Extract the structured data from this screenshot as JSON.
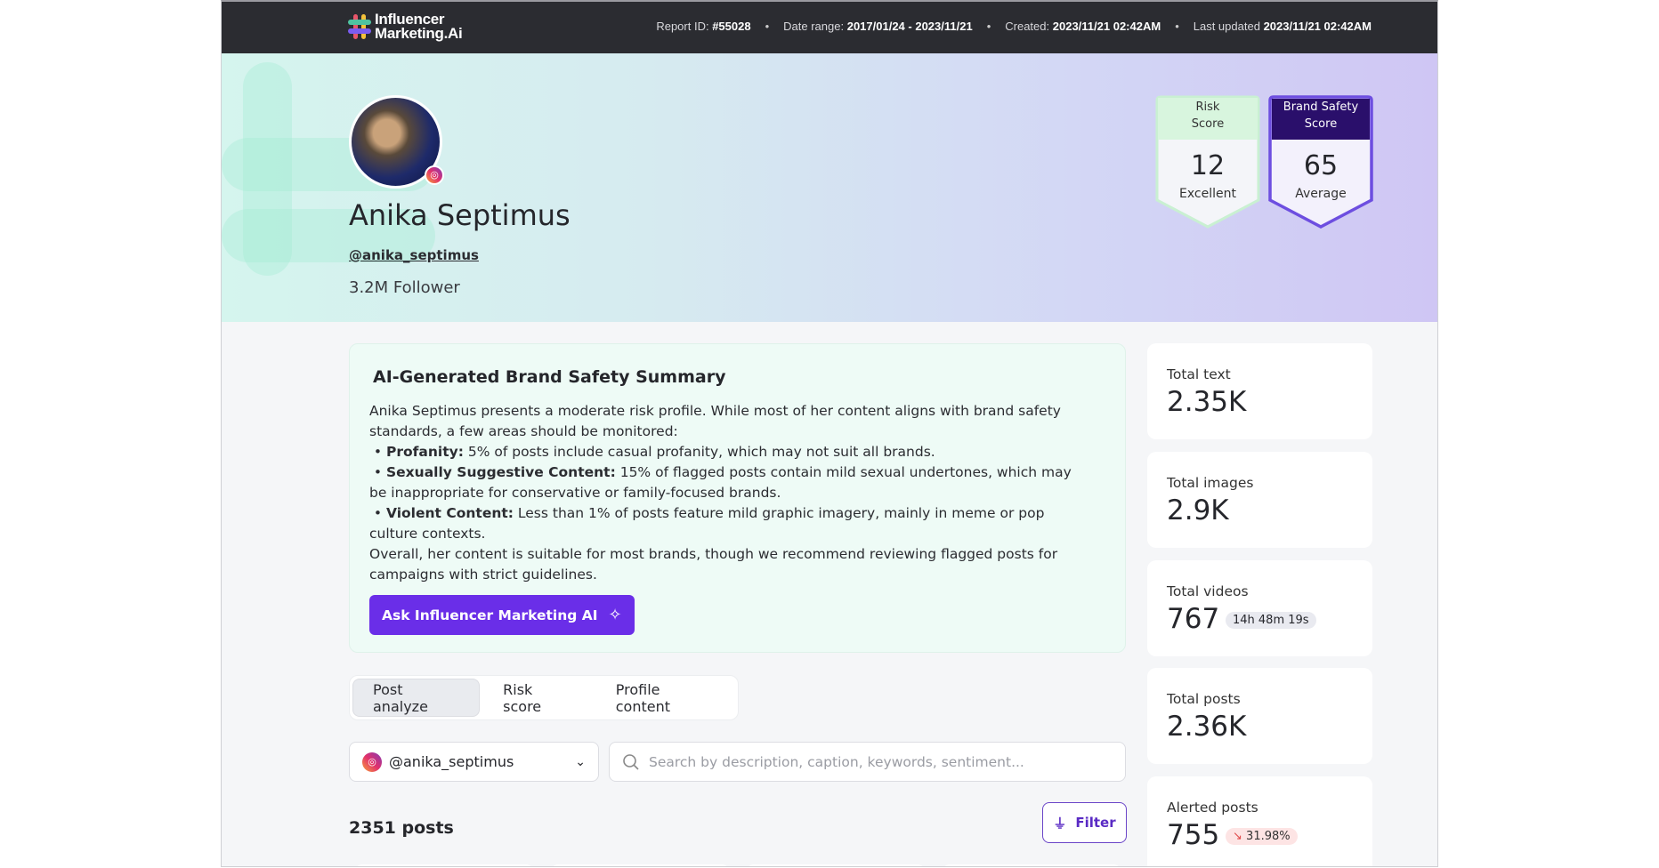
{
  "header": {
    "logo_line1": "Influencer",
    "logo_line2": "Marketing.Ai",
    "report_id_label": "Report ID:",
    "report_id": "#55028",
    "date_range_label": "Date range:",
    "date_range": "2017/01/24 - 2023/11/21",
    "created_label": "Created:",
    "created": "2023/11/21 02:42AM",
    "updated_label": "Last updated",
    "updated": "2023/11/21 02:42AM"
  },
  "profile": {
    "name": "Anika Septimus",
    "handle": "@anika_septimus",
    "followers": "3.2M Follower",
    "platform_icon": "instagram-icon"
  },
  "scores": {
    "risk": {
      "title_line1": "Risk",
      "title_line2": "Score",
      "value": "12",
      "label": "Excellent",
      "color": "#c9f0d2"
    },
    "brand_safety": {
      "title_line1": "Brand Safety",
      "title_line2": "Score",
      "value": "65",
      "label": "Average",
      "color": "#2a0f6b"
    }
  },
  "summary": {
    "title": "AI-Generated Brand Safety Summary",
    "intro": "Anika Septimus presents a moderate risk profile. While most of her content aligns with brand safety standards, a few areas should be monitored:",
    "bullets": [
      {
        "label": "Profanity:",
        "text": " 5% of posts include casual profanity, which may not suit all brands."
      },
      {
        "label": "Sexually Suggestive Content:",
        "text": " 15% of flagged posts contain mild sexual undertones, which may be inappropriate for conservative or family-focused brands."
      },
      {
        "label": "Violent Content:",
        "text": " Less than 1% of posts feature mild graphic imagery, mainly in meme or pop culture contexts."
      }
    ],
    "conclusion": "Overall, her content is suitable for most brands, though we recommend reviewing flagged posts for campaigns with strict guidelines.",
    "ask_button": "Ask Influencer Marketing AI"
  },
  "stats": [
    {
      "label": "Total text",
      "value": "2.35K"
    },
    {
      "label": "Total images",
      "value": "2.9K"
    },
    {
      "label": "Total videos",
      "value": "767",
      "pill": "14h 48m 19s"
    },
    {
      "label": "Total posts",
      "value": "2.36K"
    },
    {
      "label": "Alerted posts",
      "value": "755",
      "pill": "31.98%",
      "pill_color": "#fde4e4"
    }
  ],
  "tabs": [
    {
      "label": "Post analyze",
      "active": true
    },
    {
      "label": "Risk score",
      "active": false
    },
    {
      "label": "Profile content",
      "active": false
    }
  ],
  "account_select": {
    "value": "@anika_septimus"
  },
  "search": {
    "placeholder": "Search by description, caption, keywords, sentiment..."
  },
  "posts_count": "2351 posts",
  "filter_button": "Filter",
  "colors": {
    "accent": "#6a2ee8",
    "topbar": "#2b2c31"
  }
}
